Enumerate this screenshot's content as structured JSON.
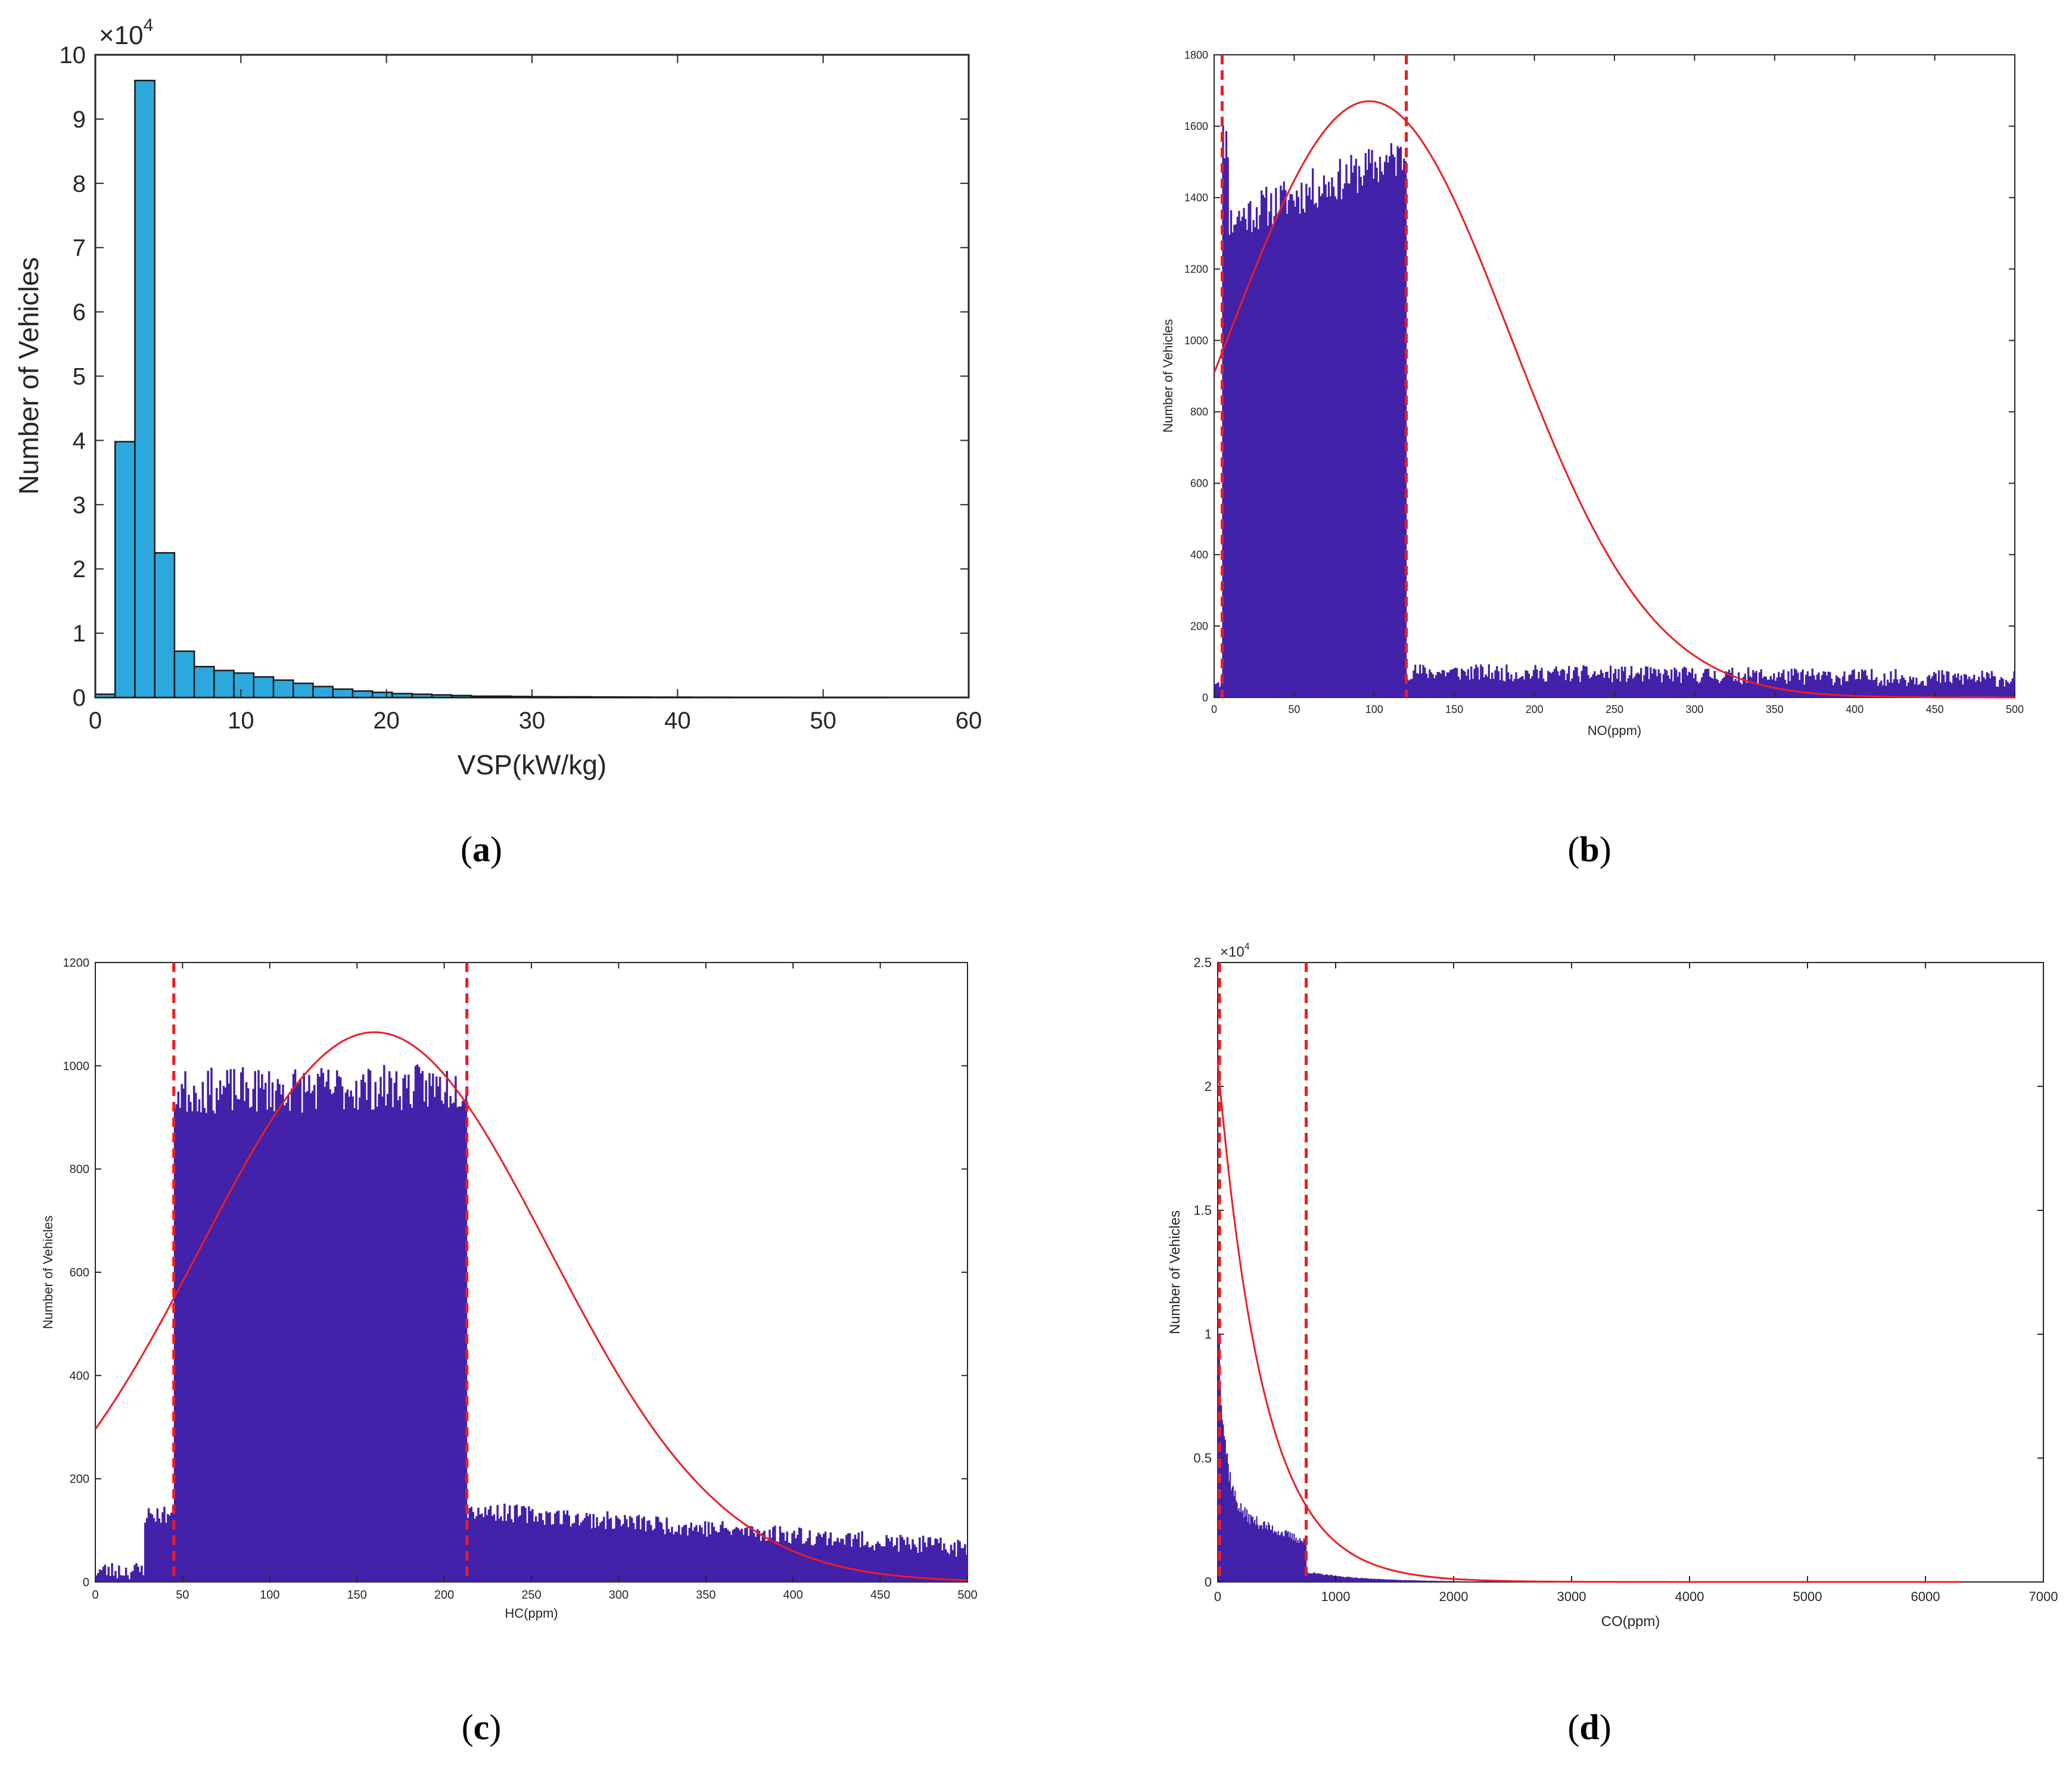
{
  "chart_data": [
    {
      "id": "a",
      "type": "bar",
      "caption_letter": "a",
      "xlabel": "VSP(kW/kg)",
      "ylabel": "Number of Vehicles",
      "multiplier_label": "×10",
      "multiplier_exp": "4",
      "xlim": [
        0,
        60
      ],
      "ylim": [
        0,
        10
      ],
      "xticks": [
        0,
        10,
        20,
        30,
        40,
        50,
        60
      ],
      "yticks": [
        0,
        1,
        2,
        3,
        4,
        5,
        6,
        7,
        8,
        9,
        10
      ],
      "bar_color": "#2DA8DD",
      "bin_width": 1.36,
      "bin_start": 0,
      "values": [
        0.05,
        3.98,
        9.6,
        2.25,
        0.72,
        0.48,
        0.42,
        0.38,
        0.32,
        0.27,
        0.22,
        0.17,
        0.13,
        0.1,
        0.08,
        0.06,
        0.05,
        0.04,
        0.03,
        0.02,
        0.02,
        0.015,
        0.012,
        0.01,
        0.01,
        0.008,
        0.007,
        0.006,
        0.005,
        0.005,
        0.004,
        0.004,
        0.003,
        0.003,
        0.003,
        0.002,
        0.002,
        0.002,
        0.002,
        0.002
      ]
    },
    {
      "id": "b",
      "type": "bar",
      "caption_letter": "b",
      "xlabel": "NO(ppm)",
      "ylabel": "Number of Vehicles",
      "xlim": [
        0,
        500
      ],
      "ylim": [
        0,
        1800
      ],
      "xticks": [
        0,
        50,
        100,
        150,
        200,
        250,
        300,
        350,
        400,
        450,
        500
      ],
      "yticks": [
        0,
        200,
        400,
        600,
        800,
        1000,
        1200,
        1400,
        1600,
        1800
      ],
      "bar_color": "#4321A9",
      "hist_segments": [
        {
          "from": 0,
          "to": 5,
          "level": 50
        },
        {
          "from": 5,
          "to": 9,
          "level": 1560
        },
        {
          "from": 9,
          "to": 12,
          "level": 1330
        },
        {
          "from": 12,
          "to": 120,
          "level_start": 1340,
          "level_end": 1520
        },
        {
          "from": 120,
          "to": 500,
          "level_start": 72,
          "level_end": 52
        }
      ],
      "noise_amplitude": 60,
      "fit_curve": {
        "kind": "gaussian",
        "mu": 97,
        "sigma": 88,
        "peak": 1670
      },
      "dashed_lines_x": [
        5,
        120
      ],
      "line_color": "#ED1C24"
    },
    {
      "id": "c",
      "type": "bar",
      "caption_letter": "c",
      "xlabel": "HC(ppm)",
      "ylabel": "Number of Vehicles",
      "xlim": [
        0,
        500
      ],
      "ylim": [
        0,
        1200
      ],
      "xticks": [
        0,
        50,
        100,
        150,
        200,
        250,
        300,
        350,
        400,
        450,
        500
      ],
      "yticks": [
        0,
        200,
        400,
        600,
        800,
        1000,
        1200
      ],
      "bar_color": "#4321A9",
      "hist_segments": [
        {
          "from": 0,
          "to": 28,
          "level": 22
        },
        {
          "from": 28,
          "to": 45,
          "level": 130
        },
        {
          "from": 45,
          "to": 213,
          "level_start": 950,
          "level_end": 960
        },
        {
          "from": 213,
          "to": 500,
          "level_start": 140,
          "level_end": 65
        }
      ],
      "noise_amplitude": 45,
      "fit_curve": {
        "kind": "gaussian",
        "mu": 160,
        "sigma": 100,
        "peak": 1065
      },
      "dashed_lines_x": [
        45,
        213
      ],
      "line_color": "#ED1C24"
    },
    {
      "id": "d",
      "type": "bar",
      "caption_letter": "d",
      "xlabel": "CO(ppm)",
      "ylabel": "Number of Vehicles",
      "multiplier_label": "×10",
      "multiplier_exp": "4",
      "xlim": [
        0,
        7000
      ],
      "ylim": [
        0,
        2.5
      ],
      "xticks": [
        0,
        1000,
        2000,
        3000,
        4000,
        5000,
        6000,
        7000
      ],
      "yticks": [
        0,
        0.5,
        1,
        1.5,
        2,
        2.5
      ],
      "bar_color": "#4321A9",
      "hist_segments": [
        {
          "from": 0,
          "to": 750,
          "kind": "decay",
          "a": 0.8,
          "tau": 60,
          "floor_start": 0.3,
          "floor_end": 0.16
        },
        {
          "from": 750,
          "to": 2500,
          "kind": "decay",
          "a": 0.04,
          "tau": 500,
          "floor_start": 0,
          "floor_end": 0
        }
      ],
      "fit_curve": {
        "kind": "exponential",
        "amplitude": 2.1,
        "tau": 390,
        "x_end": 6300
      },
      "dashed_lines_x": [
        0,
        750
      ],
      "line_color": "#ED1C24"
    }
  ]
}
